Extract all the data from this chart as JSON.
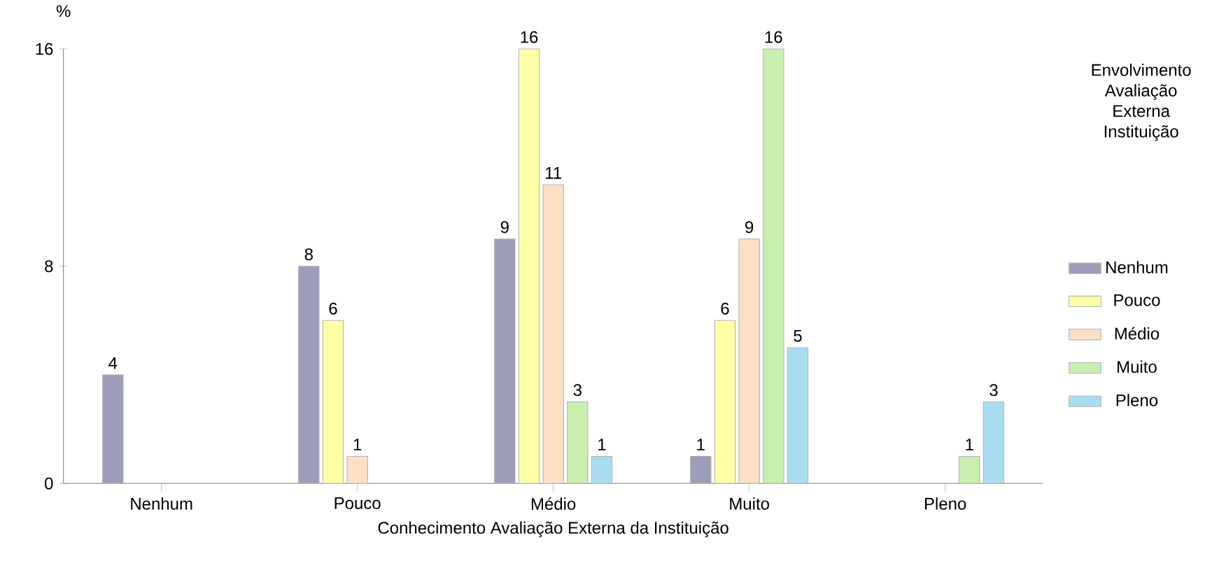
{
  "chart_data": {
    "type": "bar",
    "xlabel": "Conhecimento Avaliação Externa da Instituição",
    "ylabel": "%",
    "legend_title": "Envolvimento Avaliação Externa Instituição",
    "categories": [
      "Nenhum",
      "Pouco",
      "Médio",
      "Muito",
      "Pleno"
    ],
    "series": [
      {
        "name": "Nenhum",
        "color": "#9d9dba",
        "values": [
          4,
          8,
          9,
          1,
          null
        ]
      },
      {
        "name": "Pouco",
        "color": "#ffffa6",
        "values": [
          null,
          6,
          16,
          6,
          null
        ]
      },
      {
        "name": "Médio",
        "color": "#fbe0c6",
        "values": [
          null,
          1,
          11,
          9,
          null
        ]
      },
      {
        "name": "Muito",
        "color": "#c9efb0",
        "values": [
          null,
          null,
          3,
          16,
          1
        ]
      },
      {
        "name": "Pleno",
        "color": "#a9dcf0",
        "values": [
          null,
          null,
          1,
          5,
          3
        ]
      }
    ],
    "ylim": [
      0,
      16
    ],
    "yticks": [
      0,
      8,
      16
    ],
    "data_labels": true,
    "legend": "right",
    "grid": false
  }
}
